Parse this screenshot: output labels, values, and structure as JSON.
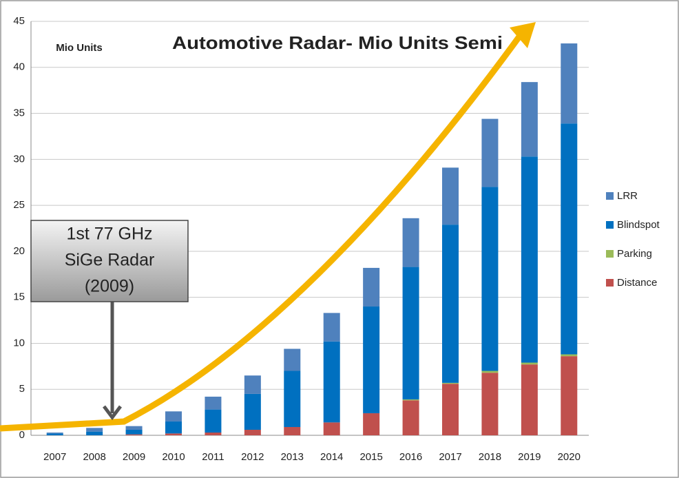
{
  "chart_data": {
    "type": "stacked_bar",
    "title": "Automotive Radar- Mio Units Semi",
    "y_axis_label": "Mio Units",
    "annotation": [
      "1st 77 GHz",
      "SiGe Radar",
      "(2009)"
    ],
    "categories": [
      "2007",
      "2008",
      "2009",
      "2010",
      "2011",
      "2012",
      "2013",
      "2014",
      "2015",
      "2016",
      "2017",
      "2018",
      "2019",
      "2020"
    ],
    "series": [
      {
        "name": "LRR",
        "color": "#4f81bd",
        "values": [
          0.1,
          0.4,
          0.4,
          1.1,
          1.4,
          2.0,
          2.4,
          3.1,
          4.2,
          5.3,
          6.2,
          7.4,
          8.1,
          8.7
        ]
      },
      {
        "name": "Blindspot",
        "color": "#0070c0",
        "values": [
          0.2,
          0.4,
          0.5,
          1.3,
          2.5,
          3.9,
          6.1,
          8.8,
          11.6,
          14.4,
          17.2,
          20.0,
          22.4,
          25.1
        ]
      },
      {
        "name": "Parking",
        "color": "#9bbb59",
        "values": [
          0,
          0,
          0,
          0,
          0,
          0,
          0,
          0,
          0,
          0.1,
          0.1,
          0.2,
          0.2,
          0.2
        ]
      },
      {
        "name": "Distance",
        "color": "#c0504d",
        "values": [
          0,
          0,
          0.1,
          0.2,
          0.3,
          0.6,
          0.9,
          1.4,
          2.4,
          3.8,
          5.6,
          6.8,
          7.7,
          8.6
        ]
      }
    ],
    "ylim": [
      0,
      45
    ],
    "yticks": [
      0,
      5,
      10,
      15,
      20,
      25,
      30,
      35,
      40,
      45
    ],
    "grid": true,
    "legend": "right"
  }
}
